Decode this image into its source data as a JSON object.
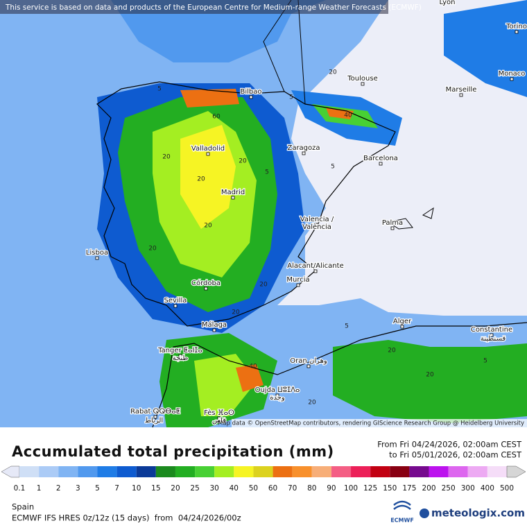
{
  "notice": "This service is based on data and products of the European Centre for Medium-range Weather Forecasts (ECMWF)",
  "map": {
    "cities": [
      "Lyon",
      "Torino",
      "Monaco",
      "Toulouse",
      "Marseille",
      "Bilbao",
      "Valladolid",
      "Zaragoza",
      "Barcelona",
      "Madrid",
      "Valencia /",
      "València",
      "Palma",
      "Lisboa",
      "Alacant/Alicante",
      "Murcia",
      "Córdoba",
      "Sevilla",
      "Málaga",
      "Alger",
      "Constantine",
      "قسنطينة",
      "Tanger ⵟⴰⵏⵊⴰ",
      "طنجة",
      "Oran وهران",
      "Oujda ⵡⵓⵊⴷⴰ",
      "وجدة",
      "Rabat ⵕⵕⴱⴰⵟ",
      "الرباط",
      "Fès ⴼⴰⵙ",
      "فاس"
    ],
    "contour_labels": [
      "5",
      "5",
      "20",
      "60",
      "40",
      "20",
      "20",
      "20",
      "5",
      "20",
      "20",
      "5",
      "20",
      "20",
      "40",
      "20",
      "5",
      "20",
      "20",
      "5"
    ],
    "attribution": "Map data © OpenStreetMap contributors, rendering GIScience Research Group @ Heidelberg University"
  },
  "legend": {
    "title": "Accumulated total precipitation (mm)",
    "period_from": "From Fri 04/24/2026, 02:00am CEST",
    "period_to": "to Fri 05/01/2026, 02:00am CEST",
    "values": [
      0.1,
      1,
      2,
      3,
      5,
      7,
      10,
      15,
      20,
      25,
      30,
      40,
      50,
      60,
      70,
      80,
      90,
      100,
      125,
      150,
      175,
      200,
      250,
      300,
      400,
      500
    ],
    "colors": [
      "#e6e9f7",
      "#cfdff6",
      "#abcbf6",
      "#80b4f3",
      "#5199ee",
      "#1f7ce6",
      "#0e5bd0",
      "#0b3a98",
      "#1b8a1e",
      "#23ae22",
      "#48d034",
      "#a4ee22",
      "#f6f424",
      "#dcd21e",
      "#ec7012",
      "#f8902c",
      "#f7ae78",
      "#f45e84",
      "#ec2058",
      "#c20012",
      "#880012",
      "#760a8e",
      "#bc12ee",
      "#dd66ef",
      "#edaaf3",
      "#f5ddf8",
      "#d6d6d6"
    ]
  },
  "footer": {
    "region": "Spain",
    "model": "ECMWF IFS HRES 0z/12z (15 days)  from  04/24/2026/00z",
    "logo_left": "ECMWF",
    "logo_right": "meteologix.com"
  }
}
